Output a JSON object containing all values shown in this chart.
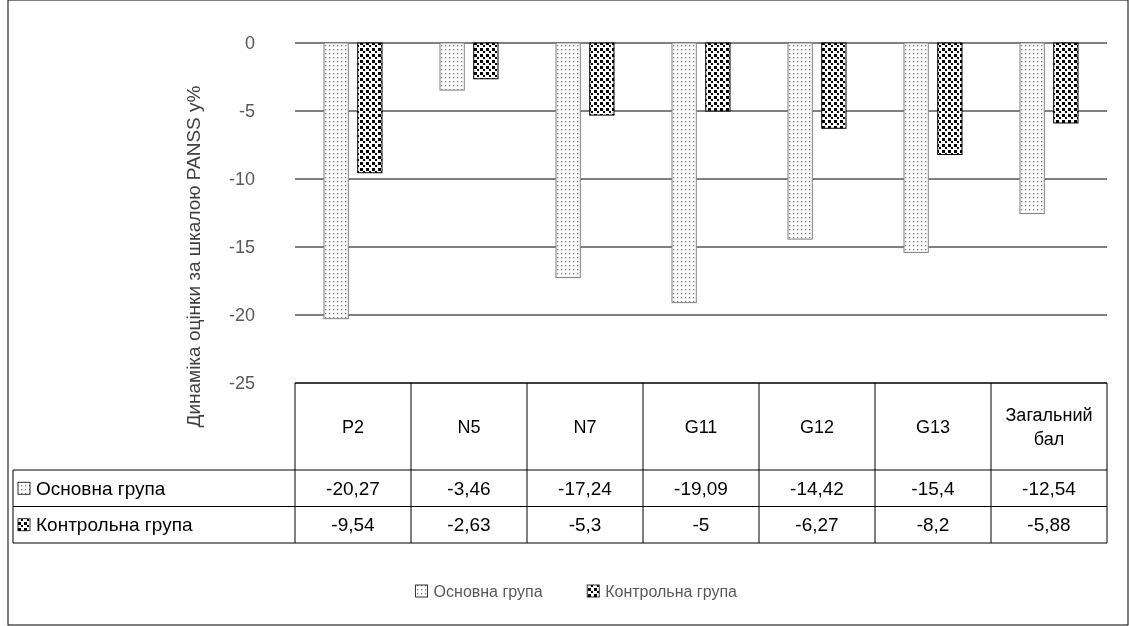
{
  "chart_data": {
    "type": "bar",
    "ylabel": "Динаміка оцінки за шкалою PANSS у%",
    "categories": [
      "P2",
      "N5",
      "N7",
      "G11",
      "G12",
      "G13",
      "Загальний бал"
    ],
    "series": [
      {
        "name": "Основна група",
        "color": "#7f7f7f",
        "values": [
          -20.27,
          -3.46,
          -17.24,
          -19.09,
          -14.42,
          -15.4,
          -12.54
        ],
        "value_labels": [
          "-20,27",
          "-3,46",
          "-17,24",
          "-19,09",
          "-14,42",
          "-15,4",
          "-12,54"
        ]
      },
      {
        "name": "Контрольна група",
        "color": "#000000",
        "values": [
          -9.54,
          -2.63,
          -5.3,
          -5,
          -6.27,
          -8.2,
          -5.88
        ],
        "value_labels": [
          "-9,54",
          "-2,63",
          "-5,3",
          "-5",
          "-6,27",
          "-8,2",
          "-5,88"
        ]
      }
    ],
    "ylim": [
      -25,
      0
    ],
    "yticks": [
      -25,
      -20,
      -15,
      -10,
      -5,
      0
    ],
    "grid": "y",
    "legend": "bottom"
  }
}
